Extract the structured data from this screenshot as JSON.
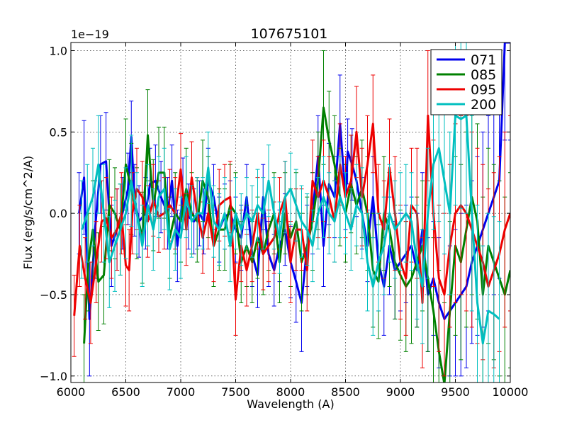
{
  "chart_data": {
    "type": "line",
    "title": "107675101",
    "xlabel": "Wavelength (A)",
    "ylabel": "Flux (erg/s/cm^2/A)",
    "offset_label": "1e−19",
    "xlim": [
      6000,
      10000
    ],
    "ylim": [
      -1.04,
      1.05
    ],
    "scale_factor": 1e-19,
    "grid": true,
    "legend_position": "top-right",
    "x_ticks": [
      6000,
      6500,
      7000,
      7500,
      8000,
      8500,
      9000,
      9500,
      10000
    ],
    "y_ticks": [
      -1.0,
      -0.5,
      0.0,
      0.5,
      1.0
    ],
    "x_tick_labels": [
      "6000",
      "6500",
      "7000",
      "7500",
      "8000",
      "8500",
      "9000",
      "9500",
      "10000"
    ],
    "y_tick_labels": [
      "−1.0",
      "−0.5",
      "0.0",
      "0.5",
      "1.0"
    ],
    "series": [
      {
        "name": "071",
        "color": "#0000ee",
        "x": [
          6075,
          6120,
          6170,
          6220,
          6270,
          6320,
          6370,
          6420,
          6470,
          6520,
          6550,
          6580,
          6620,
          6680,
          6720,
          6770,
          6820,
          6880,
          6920,
          6970,
          7020,
          7070,
          7120,
          7170,
          7210,
          7250,
          7300,
          7350,
          7400,
          7450,
          7500,
          7550,
          7600,
          7650,
          7700,
          7750,
          7800,
          7850,
          7900,
          7950,
          8000,
          8050,
          8100,
          8150,
          8200,
          8250,
          8300,
          8350,
          8400,
          8450,
          8500,
          8520,
          8560,
          8600,
          8650,
          8700,
          8750,
          8800,
          8850,
          8900,
          8950,
          9000,
          9050,
          9100,
          9150,
          9200,
          9250,
          9300,
          9350,
          9400,
          9450,
          9500,
          9550,
          9600,
          9650,
          9700,
          9750,
          9800,
          9850,
          9900,
          9950,
          10000
        ],
        "y": [
          0.0,
          0.22,
          -0.65,
          -0.1,
          0.3,
          0.32,
          -0.2,
          -0.1,
          0.0,
          0.15,
          0.47,
          0.08,
          -0.05,
          0.0,
          0.18,
          0.2,
          0.1,
          0.0,
          0.2,
          -0.2,
          0.12,
          -0.02,
          -0.05,
          0.0,
          -0.05,
          0.2,
          0.1,
          -0.1,
          -0.02,
          0.0,
          -0.1,
          -0.15,
          0.1,
          -0.25,
          -0.38,
          0.1,
          -0.25,
          -0.35,
          -0.2,
          -0.1,
          -0.3,
          -0.42,
          -0.55,
          -0.2,
          0.0,
          0.35,
          -0.2,
          0.18,
          0.1,
          0.55,
          0.1,
          0.38,
          0.3,
          0.2,
          0.0,
          -0.2,
          0.1,
          -0.3,
          -0.45,
          -0.2,
          -0.35,
          -0.3,
          -0.25,
          -0.2,
          -0.35,
          -0.1,
          -0.5,
          -0.4,
          -0.55,
          -0.65,
          -0.6,
          -0.55,
          -0.5,
          -0.45,
          -0.3,
          -0.2,
          -0.1,
          0.0,
          0.1,
          0.2,
          1.05,
          1.05
        ],
        "errors": [
          0.25,
          0.35,
          0.35,
          0.3,
          0.3,
          0.3,
          0.25,
          0.25,
          0.22,
          0.22,
          0.22,
          0.22,
          0.22,
          0.22,
          0.22,
          0.22,
          0.22,
          0.22,
          0.22,
          0.22,
          0.22,
          0.2,
          0.2,
          0.2,
          0.2,
          0.2,
          0.2,
          0.2,
          0.2,
          0.2,
          0.2,
          0.2,
          0.2,
          0.2,
          0.2,
          0.2,
          0.2,
          0.22,
          0.22,
          0.22,
          0.22,
          0.25,
          0.3,
          0.25,
          0.25,
          0.25,
          0.25,
          0.25,
          0.25,
          0.3,
          0.2,
          0.2,
          0.22,
          0.22,
          0.22,
          0.22,
          0.25,
          0.3,
          0.3,
          0.3,
          0.3,
          0.3,
          0.3,
          0.3,
          0.35,
          0.35,
          0.35,
          0.35,
          0.4,
          0.4,
          0.4,
          0.45,
          0.5,
          0.5,
          0.5,
          0.55,
          0.6,
          0.6,
          0.6,
          0.6,
          0.6,
          0.6
        ]
      },
      {
        "name": "085",
        "color": "#008000",
        "x": [
          6120,
          6160,
          6200,
          6250,
          6300,
          6350,
          6400,
          6450,
          6500,
          6550,
          6600,
          6650,
          6700,
          6750,
          6800,
          6850,
          6900,
          6950,
          7000,
          7050,
          7100,
          7150,
          7200,
          7250,
          7300,
          7350,
          7400,
          7450,
          7500,
          7550,
          7600,
          7650,
          7700,
          7750,
          7800,
          7850,
          7900,
          7950,
          8000,
          8050,
          8100,
          8150,
          8200,
          8250,
          8300,
          8350,
          8400,
          8450,
          8500,
          8550,
          8600,
          8650,
          8700,
          8750,
          8800,
          8850,
          8900,
          8950,
          9000,
          9050,
          9100,
          9150,
          9200,
          9250,
          9300,
          9350,
          9400,
          9450,
          9500,
          9550,
          9600,
          9650,
          9700,
          9750,
          9800,
          9850,
          9900,
          9950,
          10000
        ],
        "y": [
          -0.8,
          -0.3,
          -0.1,
          -0.42,
          -0.38,
          0.05,
          0.0,
          -0.1,
          0.3,
          0.15,
          0.0,
          -0.15,
          0.48,
          0.05,
          0.25,
          0.25,
          -0.15,
          0.0,
          -0.05,
          0.15,
          0.0,
          -0.05,
          0.2,
          0.1,
          -0.2,
          -0.1,
          -0.1,
          0.05,
          0.0,
          -0.3,
          -0.2,
          -0.3,
          -0.15,
          -0.25,
          -0.1,
          0.0,
          -0.3,
          0.0,
          -0.15,
          -0.05,
          -0.3,
          -0.2,
          -0.05,
          0.2,
          0.65,
          0.45,
          0.3,
          0.1,
          0.0,
          0.18,
          0.05,
          0.15,
          0.0,
          -0.35,
          -0.42,
          0.0,
          -0.1,
          -0.3,
          -0.38,
          -0.45,
          -0.4,
          -0.3,
          -0.2,
          -0.4,
          -0.6,
          -0.85,
          -1.05,
          -0.6,
          -0.2,
          -0.3,
          -0.1,
          0.1,
          -0.05,
          -0.5,
          -0.2,
          -0.3,
          -0.4,
          -0.5,
          -0.35
        ],
        "errors": [
          0.3,
          0.3,
          0.3,
          0.3,
          0.3,
          0.28,
          0.28,
          0.28,
          0.28,
          0.28,
          0.28,
          0.28,
          0.28,
          0.28,
          0.28,
          0.28,
          0.25,
          0.25,
          0.25,
          0.25,
          0.25,
          0.25,
          0.25,
          0.25,
          0.25,
          0.25,
          0.25,
          0.25,
          0.25,
          0.25,
          0.25,
          0.25,
          0.25,
          0.25,
          0.25,
          0.25,
          0.25,
          0.25,
          0.3,
          0.3,
          0.3,
          0.3,
          0.3,
          0.3,
          0.35,
          0.3,
          0.3,
          0.3,
          0.3,
          0.3,
          0.3,
          0.3,
          0.35,
          0.35,
          0.35,
          0.35,
          0.35,
          0.35,
          0.4,
          0.4,
          0.4,
          0.4,
          0.4,
          0.45,
          0.45,
          0.5,
          0.5,
          0.55,
          0.55,
          0.6,
          0.6,
          0.6,
          0.6,
          0.6,
          0.6,
          0.6,
          0.6,
          0.6,
          0.6
        ]
      },
      {
        "name": "095",
        "color": "#ee0000",
        "x": [
          6030,
          6080,
          6130,
          6180,
          6230,
          6280,
          6320,
          6370,
          6420,
          6460,
          6500,
          6530,
          6560,
          6600,
          6650,
          6700,
          6750,
          6800,
          6850,
          6900,
          6950,
          7000,
          7050,
          7100,
          7150,
          7200,
          7250,
          7300,
          7350,
          7400,
          7450,
          7500,
          7550,
          7600,
          7650,
          7700,
          7750,
          7800,
          7850,
          7900,
          7950,
          8000,
          8050,
          8100,
          8150,
          8200,
          8250,
          8300,
          8350,
          8400,
          8450,
          8500,
          8550,
          8600,
          8650,
          8700,
          8750,
          8800,
          8850,
          8900,
          8950,
          9000,
          9050,
          9100,
          9150,
          9200,
          9250,
          9300,
          9350,
          9400,
          9450,
          9500,
          9550,
          9600,
          9650,
          9700,
          9750,
          9800,
          9850,
          9900,
          9950,
          10000
        ],
        "y": [
          -0.63,
          -0.2,
          -0.4,
          -0.55,
          -0.3,
          -0.05,
          -0.03,
          -0.15,
          -0.1,
          0.0,
          -0.32,
          -0.35,
          0.0,
          0.15,
          0.1,
          -0.05,
          0.08,
          -0.02,
          0.0,
          0.05,
          0.0,
          0.27,
          -0.1,
          0.22,
          0.0,
          -0.15,
          0.0,
          -0.2,
          0.05,
          0.08,
          0.1,
          -0.53,
          -0.2,
          -0.35,
          -0.2,
          0.0,
          -0.25,
          -0.2,
          -0.15,
          0.0,
          0.1,
          -0.3,
          -0.1,
          -0.1,
          -0.35,
          0.2,
          0.1,
          0.2,
          0.1,
          -0.05,
          0.3,
          0.1,
          0.2,
          0.5,
          0.1,
          0.3,
          0.55,
          0.0,
          -0.1,
          0.28,
          0.0,
          -0.3,
          -0.4,
          0.05,
          0.0,
          -0.55,
          0.6,
          0.0,
          -0.4,
          -0.5,
          -0.2,
          0.0,
          0.05,
          0.0,
          -0.1,
          -0.2,
          -0.3,
          -0.45,
          -0.35,
          -0.25,
          -0.1,
          0.0
        ],
        "errors": [
          0.25,
          0.25,
          0.25,
          0.25,
          0.25,
          0.25,
          0.25,
          0.25,
          0.25,
          0.25,
          0.25,
          0.25,
          0.25,
          0.25,
          0.22,
          0.22,
          0.22,
          0.22,
          0.22,
          0.22,
          0.22,
          0.22,
          0.22,
          0.22,
          0.22,
          0.22,
          0.22,
          0.22,
          0.22,
          0.22,
          0.22,
          0.22,
          0.22,
          0.22,
          0.22,
          0.22,
          0.22,
          0.22,
          0.22,
          0.22,
          0.22,
          0.25,
          0.25,
          0.25,
          0.25,
          0.25,
          0.25,
          0.25,
          0.25,
          0.25,
          0.25,
          0.25,
          0.28,
          0.28,
          0.3,
          0.3,
          0.3,
          0.3,
          0.3,
          0.3,
          0.35,
          0.35,
          0.35,
          0.35,
          0.4,
          0.4,
          0.4,
          0.45,
          0.45,
          0.5,
          0.5,
          0.55,
          0.55,
          0.6,
          0.6,
          0.6,
          0.6,
          0.6,
          0.6,
          0.6,
          0.6,
          0.6
        ]
      },
      {
        "name": "200",
        "color": "#00bfbf",
        "x": [
          6100,
          6150,
          6200,
          6250,
          6300,
          6350,
          6400,
          6450,
          6500,
          6550,
          6600,
          6650,
          6700,
          6750,
          6800,
          6850,
          6900,
          6950,
          7000,
          7050,
          7100,
          7150,
          7200,
          7250,
          7300,
          7350,
          7400,
          7450,
          7500,
          7550,
          7600,
          7650,
          7700,
          7750,
          7800,
          7850,
          7900,
          7950,
          8000,
          8050,
          8100,
          8150,
          8200,
          8250,
          8300,
          8350,
          8400,
          8450,
          8500,
          8550,
          8600,
          8650,
          8700,
          8750,
          8800,
          8850,
          8900,
          8950,
          9000,
          9050,
          9100,
          9150,
          9200,
          9250,
          9300,
          9350,
          9400,
          9450,
          9500,
          9550,
          9600,
          9650,
          9700,
          9750,
          9800,
          9850,
          9900
        ],
        "y": [
          -0.1,
          0.0,
          0.1,
          0.3,
          0.0,
          -0.3,
          -0.2,
          -0.1,
          0.0,
          0.2,
          0.0,
          -0.2,
          0.05,
          -0.1,
          0.1,
          0.15,
          -0.22,
          -0.1,
          -0.15,
          0.1,
          -0.05,
          0.0,
          0.0,
          0.28,
          -0.05,
          -0.1,
          0.0,
          -0.2,
          0.0,
          -0.1,
          0.0,
          -0.05,
          0.05,
          0.0,
          0.2,
          0.0,
          -0.15,
          0.1,
          0.15,
          0.05,
          -0.05,
          -0.1,
          -0.2,
          0.0,
          0.1,
          0.0,
          -0.05,
          0.1,
          0.0,
          -0.1,
          0.05,
          0.0,
          -0.3,
          -0.45,
          -0.3,
          -0.2,
          0.0,
          -0.1,
          -0.05,
          0.0,
          -0.05,
          -0.3,
          -0.45,
          0.0,
          0.3,
          0.4,
          0.2,
          0.0,
          0.6,
          0.58,
          0.6,
          0.0,
          -0.55,
          -0.8,
          -0.6,
          -0.62,
          -0.65
        ],
        "errors": [
          0.3,
          0.3,
          0.3,
          0.3,
          0.3,
          0.28,
          0.28,
          0.28,
          0.28,
          0.28,
          0.25,
          0.25,
          0.25,
          0.25,
          0.25,
          0.25,
          0.25,
          0.25,
          0.25,
          0.25,
          0.22,
          0.22,
          0.22,
          0.22,
          0.22,
          0.22,
          0.22,
          0.22,
          0.22,
          0.22,
          0.22,
          0.22,
          0.22,
          0.22,
          0.22,
          0.22,
          0.22,
          0.22,
          0.22,
          0.22,
          0.22,
          0.22,
          0.22,
          0.22,
          0.25,
          0.25,
          0.25,
          0.25,
          0.25,
          0.25,
          0.25,
          0.28,
          0.3,
          0.3,
          0.3,
          0.3,
          0.3,
          0.3,
          0.3,
          0.3,
          0.3,
          0.35,
          0.35,
          0.4,
          0.4,
          0.45,
          0.45,
          0.5,
          0.55,
          0.55,
          0.6,
          0.6,
          0.6,
          0.6,
          0.6,
          0.6,
          0.6
        ]
      }
    ]
  }
}
